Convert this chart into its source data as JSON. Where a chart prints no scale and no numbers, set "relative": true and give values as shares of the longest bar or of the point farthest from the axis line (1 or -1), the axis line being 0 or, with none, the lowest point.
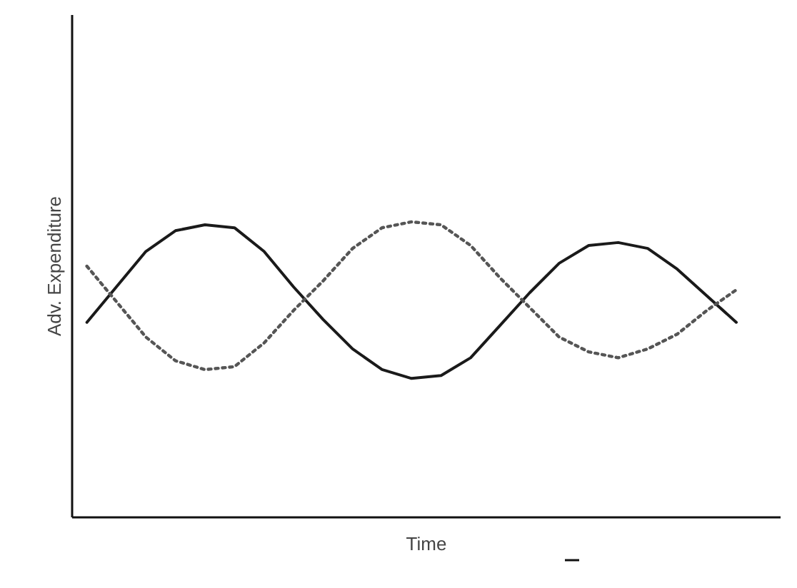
{
  "chart_data": {
    "type": "line",
    "relative": true,
    "xlabel": "Time",
    "ylabel": "Adv. Expenditure",
    "grid": false,
    "marker": "none",
    "categories": [
      null,
      null,
      null,
      null,
      null,
      null,
      null,
      null,
      null,
      null,
      null,
      null,
      null,
      null,
      null,
      null,
      null,
      null,
      null,
      null,
      null,
      null,
      null
    ],
    "series": [
      {
        "color": "#1a1a1a",
        "line_style": "solid",
        "values": [
          0.66,
          0.78,
          0.9,
          0.97,
          0.99,
          0.98,
          0.9,
          0.78,
          0.67,
          0.57,
          0.5,
          0.47,
          0.48,
          0.54,
          0.65,
          0.76,
          0.86,
          0.92,
          0.93,
          0.91,
          0.84,
          0.75,
          0.66
        ]
      },
      {
        "color": "#555555",
        "line_style": "dotted",
        "values": [
          0.85,
          0.73,
          0.61,
          0.53,
          0.5,
          0.51,
          0.59,
          0.7,
          0.8,
          0.91,
          0.98,
          1.0,
          0.99,
          0.92,
          0.81,
          0.71,
          0.61,
          0.56,
          0.54,
          0.57,
          0.62,
          0.7,
          0.77
        ]
      }
    ]
  }
}
